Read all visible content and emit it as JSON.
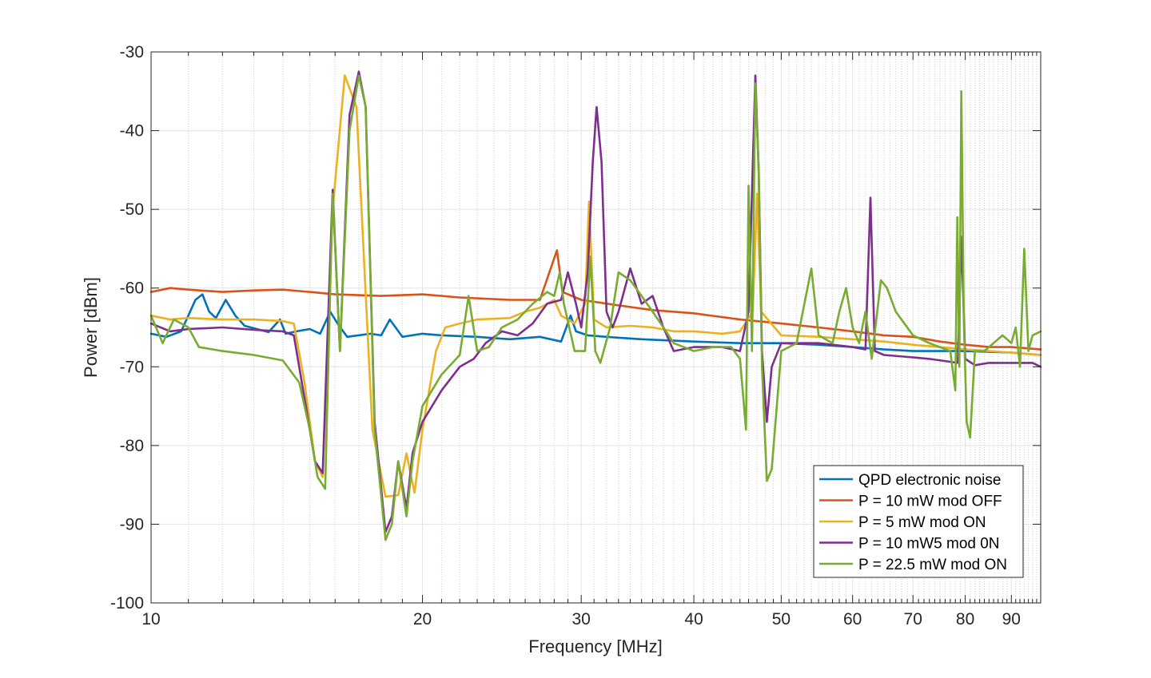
{
  "chart_data": {
    "type": "line",
    "title": "",
    "xlabel": "Frequency [MHz]",
    "ylabel": "Power [dBm]",
    "xscale": "log",
    "xlim": [
      10,
      97
    ],
    "ylim": [
      -100,
      -30
    ],
    "x_ticks": [
      10,
      20,
      30,
      40,
      50,
      60,
      70,
      80,
      90
    ],
    "y_ticks": [
      -30,
      -40,
      -50,
      -60,
      -70,
      -80,
      -90,
      -100
    ],
    "grid": true,
    "legend_position": "bottom-right",
    "series": [
      {
        "name": "QPD electronic noise",
        "color": "#0072BD",
        "points": [
          [
            10,
            -65.8
          ],
          [
            10.4,
            -66.2
          ],
          [
            10.8,
            -65.5
          ],
          [
            11.2,
            -61.5
          ],
          [
            11.4,
            -60.8
          ],
          [
            11.6,
            -63
          ],
          [
            11.8,
            -63.8
          ],
          [
            12.1,
            -61.5
          ],
          [
            12.4,
            -63.5
          ],
          [
            12.7,
            -64.8
          ],
          [
            13.1,
            -65.2
          ],
          [
            13.5,
            -65.6
          ],
          [
            13.9,
            -64
          ],
          [
            14.1,
            -65.8
          ],
          [
            14.5,
            -65.5
          ],
          [
            15,
            -65.2
          ],
          [
            15.4,
            -65.8
          ],
          [
            15.8,
            -63
          ],
          [
            16.1,
            -64.5
          ],
          [
            16.5,
            -66.2
          ],
          [
            17.5,
            -65.8
          ],
          [
            18,
            -66
          ],
          [
            18.4,
            -64
          ],
          [
            19,
            -66.2
          ],
          [
            20,
            -65.8
          ],
          [
            21,
            -66
          ],
          [
            23,
            -66.2
          ],
          [
            25,
            -66.5
          ],
          [
            27,
            -66.2
          ],
          [
            28.5,
            -66.8
          ],
          [
            29.2,
            -63.5
          ],
          [
            29.6,
            -65.5
          ],
          [
            30.5,
            -66
          ],
          [
            32,
            -66.2
          ],
          [
            35,
            -66.5
          ],
          [
            40,
            -66.8
          ],
          [
            45,
            -67
          ],
          [
            50,
            -67
          ],
          [
            55,
            -67.2
          ],
          [
            60,
            -67.5
          ],
          [
            65,
            -67.8
          ],
          [
            70,
            -68
          ],
          [
            80,
            -68
          ],
          [
            90,
            -68.2
          ],
          [
            97,
            -68.5
          ]
        ]
      },
      {
        "name": "P = 10 mW mod OFF",
        "color": "#D95319",
        "points": [
          [
            10,
            -60.5
          ],
          [
            10.5,
            -60
          ],
          [
            11,
            -60.2
          ],
          [
            12,
            -60.5
          ],
          [
            13,
            -60.3
          ],
          [
            14,
            -60.2
          ],
          [
            15,
            -60.5
          ],
          [
            16,
            -60.8
          ],
          [
            18,
            -61
          ],
          [
            20,
            -60.8
          ],
          [
            22,
            -61.2
          ],
          [
            25,
            -61.5
          ],
          [
            27,
            -61.5
          ],
          [
            28.2,
            -55.2
          ],
          [
            28.6,
            -60.5
          ],
          [
            30,
            -61.5
          ],
          [
            33,
            -62.2
          ],
          [
            36,
            -62.8
          ],
          [
            40,
            -63.2
          ],
          [
            45,
            -64
          ],
          [
            50,
            -64.5
          ],
          [
            55,
            -65
          ],
          [
            60,
            -65.5
          ],
          [
            65,
            -66
          ],
          [
            70,
            -66.2
          ],
          [
            75,
            -66.8
          ],
          [
            80,
            -67.2
          ],
          [
            85,
            -67.5
          ],
          [
            90,
            -67.5
          ],
          [
            97,
            -67.8
          ]
        ]
      },
      {
        "name": "P = 5 mW mod ON",
        "color": "#EDB120",
        "points": [
          [
            10,
            -63.5
          ],
          [
            10.5,
            -64
          ],
          [
            11,
            -63.8
          ],
          [
            12,
            -64
          ],
          [
            13,
            -64
          ],
          [
            14,
            -64.2
          ],
          [
            14.4,
            -64.5
          ],
          [
            14.8,
            -72
          ],
          [
            15.2,
            -82
          ],
          [
            15.5,
            -84
          ],
          [
            15.9,
            -50
          ],
          [
            16.4,
            -33
          ],
          [
            16.9,
            -37
          ],
          [
            17.6,
            -78
          ],
          [
            18.2,
            -86.5
          ],
          [
            18.8,
            -86.3
          ],
          [
            19.2,
            -81
          ],
          [
            19.6,
            -86
          ],
          [
            20,
            -78
          ],
          [
            20.7,
            -68
          ],
          [
            21.2,
            -65
          ],
          [
            22,
            -64.5
          ],
          [
            23,
            -64
          ],
          [
            25,
            -63.8
          ],
          [
            26,
            -63
          ],
          [
            27,
            -62.5
          ],
          [
            28,
            -61.5
          ],
          [
            28.5,
            -63.5
          ],
          [
            29.5,
            -64.5
          ],
          [
            30.3,
            -62
          ],
          [
            30.6,
            -49
          ],
          [
            31,
            -64
          ],
          [
            32,
            -65
          ],
          [
            34,
            -64.8
          ],
          [
            36,
            -65
          ],
          [
            38,
            -65.5
          ],
          [
            40,
            -65.5
          ],
          [
            43,
            -65.8
          ],
          [
            45,
            -65.5
          ],
          [
            46.5,
            -63
          ],
          [
            47,
            -48
          ],
          [
            47.5,
            -63
          ],
          [
            50,
            -66
          ],
          [
            55,
            -66.2
          ],
          [
            60,
            -66.5
          ],
          [
            65,
            -66.8
          ],
          [
            70,
            -67.2
          ],
          [
            75,
            -67.5
          ],
          [
            80,
            -67.8
          ],
          [
            85,
            -68
          ],
          [
            90,
            -68.2
          ],
          [
            97,
            -68.5
          ]
        ]
      },
      {
        "name": "P = 10 mW5 mod 0N",
        "color": "#7E2F8E",
        "points": [
          [
            10,
            -64.5
          ],
          [
            10.5,
            -65.5
          ],
          [
            11,
            -65.2
          ],
          [
            12,
            -65
          ],
          [
            13,
            -65.3
          ],
          [
            14,
            -65.5
          ],
          [
            14.4,
            -66
          ],
          [
            14.8,
            -74
          ],
          [
            15.2,
            -82
          ],
          [
            15.5,
            -83.5
          ],
          [
            15.9,
            -47.5
          ],
          [
            16.2,
            -68
          ],
          [
            16.6,
            -38
          ],
          [
            17,
            -32.5
          ],
          [
            17.3,
            -37
          ],
          [
            17.7,
            -77
          ],
          [
            18.2,
            -91
          ],
          [
            18.5,
            -89
          ],
          [
            18.8,
            -82
          ],
          [
            19.2,
            -88
          ],
          [
            19.5,
            -81
          ],
          [
            20,
            -77
          ],
          [
            21,
            -73
          ],
          [
            22,
            -70
          ],
          [
            22.8,
            -69
          ],
          [
            23.5,
            -67
          ],
          [
            24.5,
            -65.5
          ],
          [
            25.5,
            -66
          ],
          [
            26.5,
            -64.5
          ],
          [
            27.5,
            -62
          ],
          [
            28.5,
            -61.5
          ],
          [
            29,
            -58
          ],
          [
            29.6,
            -62
          ],
          [
            30,
            -65
          ],
          [
            30.5,
            -58
          ],
          [
            30.9,
            -44
          ],
          [
            31.2,
            -37
          ],
          [
            31.6,
            -44
          ],
          [
            32,
            -63
          ],
          [
            32.5,
            -65
          ],
          [
            33,
            -63
          ],
          [
            34,
            -57.5
          ],
          [
            35,
            -62
          ],
          [
            36,
            -61
          ],
          [
            37,
            -65
          ],
          [
            38,
            -68
          ],
          [
            40,
            -67.5
          ],
          [
            43,
            -67.5
          ],
          [
            45,
            -68
          ],
          [
            46,
            -63
          ],
          [
            46.8,
            -33
          ],
          [
            47.2,
            -45
          ],
          [
            47.6,
            -68
          ],
          [
            48.2,
            -77
          ],
          [
            48.8,
            -70
          ],
          [
            50,
            -67
          ],
          [
            55,
            -67
          ],
          [
            60,
            -67.5
          ],
          [
            62,
            -67.8
          ],
          [
            62.8,
            -48.5
          ],
          [
            63.5,
            -68
          ],
          [
            65,
            -68.5
          ],
          [
            70,
            -68.8
          ],
          [
            73,
            -69
          ],
          [
            78.5,
            -69.5
          ],
          [
            79.2,
            -53.5
          ],
          [
            80,
            -69
          ],
          [
            82,
            -69.8
          ],
          [
            85,
            -69.5
          ],
          [
            90,
            -69.5
          ],
          [
            95,
            -69.5
          ],
          [
            97,
            -70
          ]
        ]
      },
      {
        "name": "P = 22.5 mW mod ON",
        "color": "#77AC30",
        "points": [
          [
            10,
            -63.5
          ],
          [
            10.3,
            -67
          ],
          [
            10.6,
            -64
          ],
          [
            11,
            -65
          ],
          [
            11.3,
            -67.5
          ],
          [
            12,
            -68
          ],
          [
            13,
            -68.5
          ],
          [
            14,
            -69.2
          ],
          [
            14.6,
            -72
          ],
          [
            15,
            -78
          ],
          [
            15.3,
            -84
          ],
          [
            15.6,
            -85.5
          ],
          [
            15.9,
            -48
          ],
          [
            16.2,
            -68
          ],
          [
            16.6,
            -40
          ],
          [
            17,
            -33
          ],
          [
            17.3,
            -37
          ],
          [
            17.7,
            -78
          ],
          [
            18.2,
            -92
          ],
          [
            18.5,
            -90
          ],
          [
            18.8,
            -82
          ],
          [
            19.2,
            -89
          ],
          [
            19.5,
            -82
          ],
          [
            20,
            -75
          ],
          [
            21,
            -71
          ],
          [
            22,
            -68.5
          ],
          [
            22.5,
            -61
          ],
          [
            23,
            -68
          ],
          [
            23.7,
            -67.5
          ],
          [
            24.5,
            -65
          ],
          [
            25.5,
            -64
          ],
          [
            26.5,
            -62
          ],
          [
            27.5,
            -60.5
          ],
          [
            28,
            -61
          ],
          [
            28.4,
            -58
          ],
          [
            28.7,
            -62
          ],
          [
            29.5,
            -68
          ],
          [
            30.3,
            -68
          ],
          [
            30.7,
            -56
          ],
          [
            31.1,
            -68
          ],
          [
            31.5,
            -69.5
          ],
          [
            32.3,
            -65
          ],
          [
            33,
            -58
          ],
          [
            34,
            -59
          ],
          [
            35,
            -61
          ],
          [
            36,
            -63
          ],
          [
            37,
            -65
          ],
          [
            38,
            -67
          ],
          [
            40,
            -68
          ],
          [
            42,
            -67.5
          ],
          [
            44,
            -67.5
          ],
          [
            45,
            -69
          ],
          [
            45.7,
            -78
          ],
          [
            46,
            -47
          ],
          [
            46.4,
            -68
          ],
          [
            46.8,
            -34
          ],
          [
            47.2,
            -45
          ],
          [
            47.6,
            -70
          ],
          [
            48.2,
            -84.5
          ],
          [
            48.8,
            -83
          ],
          [
            50,
            -68
          ],
          [
            52,
            -67
          ],
          [
            54,
            -57.5
          ],
          [
            55,
            -66
          ],
          [
            57,
            -67
          ],
          [
            58,
            -63
          ],
          [
            59,
            -60
          ],
          [
            60,
            -65
          ],
          [
            61,
            -67
          ],
          [
            62,
            -63
          ],
          [
            63,
            -69
          ],
          [
            64.5,
            -59
          ],
          [
            65.5,
            -60
          ],
          [
            67,
            -63
          ],
          [
            70,
            -66
          ],
          [
            73,
            -67
          ],
          [
            77,
            -68
          ],
          [
            78,
            -73
          ],
          [
            78.4,
            -51
          ],
          [
            78.8,
            -70
          ],
          [
            79.2,
            -35
          ],
          [
            79.7,
            -64
          ],
          [
            80.3,
            -77
          ],
          [
            81,
            -79
          ],
          [
            82,
            -68
          ],
          [
            84,
            -68
          ],
          [
            86,
            -67
          ],
          [
            88,
            -66
          ],
          [
            90,
            -67
          ],
          [
            91,
            -65
          ],
          [
            92,
            -70
          ],
          [
            93,
            -55
          ],
          [
            94,
            -68
          ],
          [
            95,
            -66
          ],
          [
            97,
            -65.5
          ]
        ]
      }
    ]
  }
}
